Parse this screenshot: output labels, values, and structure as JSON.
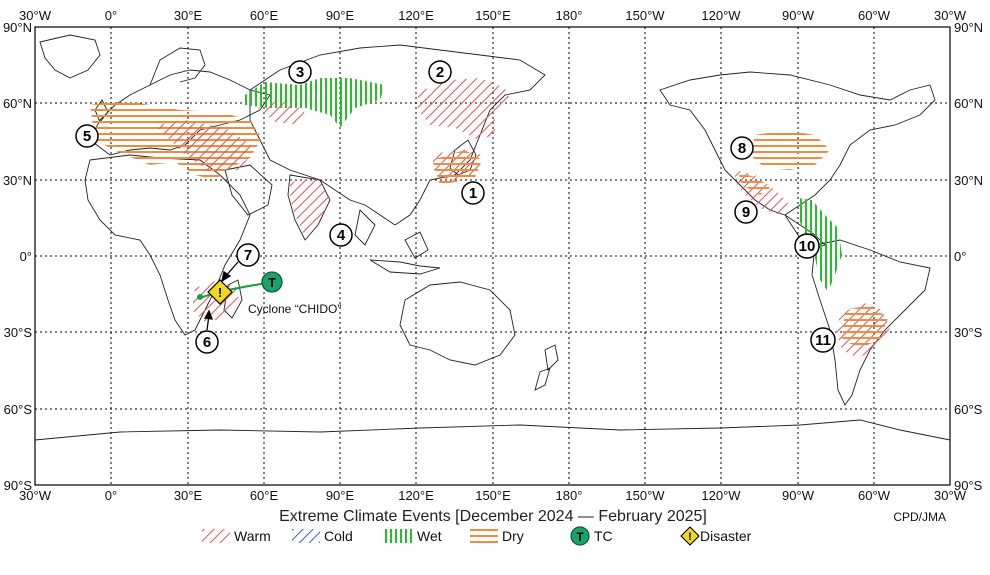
{
  "title": "Extreme Climate Events [December 2024 — February 2025]",
  "credit": "CPD/JMA",
  "lon_ticks_top": [
    "30°W",
    "0°",
    "30°E",
    "60°E",
    "90°E",
    "120°E",
    "150°E",
    "180°",
    "150°W",
    "120°W",
    "90°W",
    "60°W",
    "30°W"
  ],
  "lon_ticks_bottom": [
    "30°W",
    "0°",
    "30°E",
    "60°E",
    "90°E",
    "120°E",
    "150°E",
    "180°",
    "150°W",
    "120°W",
    "90°W",
    "60°W",
    "30°W"
  ],
  "lat_ticks_left": [
    "90°N",
    "60°N",
    "30°N",
    "0°",
    "30°S",
    "60°S",
    "90°S"
  ],
  "lat_ticks_right": [
    "90°N",
    "60°N",
    "30°N",
    "0°",
    "30°S",
    "60°S",
    "90°S"
  ],
  "cyclone_label": "Cyclone “CHIDO”",
  "tc_symbol": "T",
  "disaster_symbol": "!",
  "event_numbers": [
    "1",
    "2",
    "3",
    "4",
    "5",
    "6",
    "7",
    "8",
    "9",
    "10",
    "11"
  ],
  "legend": [
    {
      "label": "Warm",
      "color": "#e8505a"
    },
    {
      "label": "Cold",
      "color": "#3c5ae0"
    },
    {
      "label": "Wet",
      "color": "#28c028"
    },
    {
      "label": "Dry",
      "color": "#f08c3c"
    },
    {
      "label": "TC",
      "color": "#19a36b"
    },
    {
      "label": "Disaster",
      "color": "#f2d81a"
    }
  ]
}
